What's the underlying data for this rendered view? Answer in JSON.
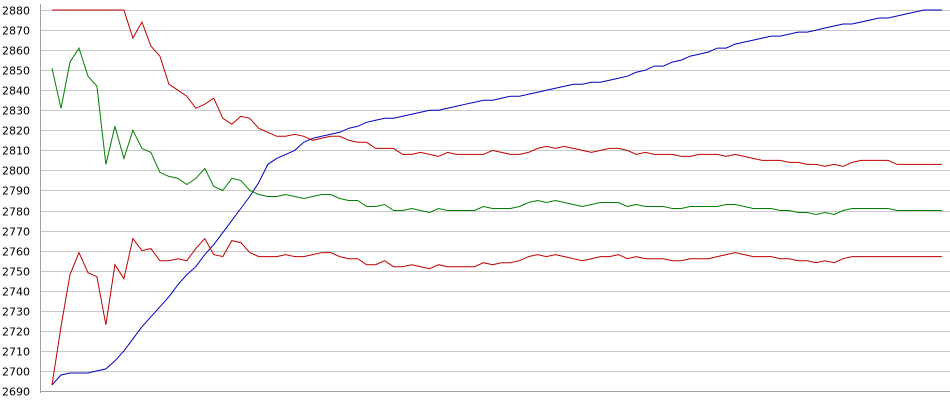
{
  "chart_data": {
    "type": "line",
    "title": "",
    "xlabel": "",
    "ylabel": "",
    "ylim": [
      2690,
      2880
    ],
    "y_ticks": [
      2690,
      2700,
      2710,
      2720,
      2730,
      2740,
      2750,
      2760,
      2770,
      2780,
      2790,
      2800,
      2810,
      2820,
      2830,
      2840,
      2850,
      2860,
      2870,
      2880
    ],
    "grid": true,
    "legend": "none",
    "x": [
      0,
      1,
      2,
      3,
      4,
      5,
      6,
      7,
      8,
      9,
      10,
      11,
      12,
      13,
      14,
      15,
      16,
      17,
      18,
      19,
      20,
      21,
      22,
      23,
      24,
      25,
      26,
      27,
      28,
      29,
      30,
      31,
      32,
      33,
      34,
      35,
      36,
      37,
      38,
      39,
      40,
      41,
      42,
      43,
      44,
      45,
      46,
      47,
      48,
      49,
      50,
      51,
      52,
      53,
      54,
      55,
      56,
      57,
      58,
      59,
      60,
      61,
      62,
      63,
      64,
      65,
      66,
      67,
      68,
      69,
      70,
      71,
      72,
      73,
      74,
      75,
      76,
      77,
      78,
      79,
      80,
      81,
      82,
      83,
      84,
      85,
      86,
      87,
      88,
      89,
      90,
      91,
      92,
      93,
      94,
      95,
      96,
      97,
      98,
      99
    ],
    "series": [
      {
        "color": "#0000c0",
        "values": [
          2693,
          2698,
          2699,
          2699,
          2699,
          2700,
          2701,
          2705,
          2710,
          2716,
          2722,
          2727,
          2732,
          2737,
          2743,
          2748,
          2752,
          2758,
          2763,
          2769,
          2775,
          2781,
          2787,
          2794,
          2803,
          2806,
          2808,
          2810,
          2814,
          2816,
          2817,
          2818,
          2819,
          2821,
          2822,
          2824,
          2825,
          2826,
          2826,
          2827,
          2828,
          2829,
          2830,
          2830,
          2831,
          2832,
          2833,
          2834,
          2835,
          2835,
          2836,
          2837,
          2837,
          2838,
          2839,
          2840,
          2841,
          2842,
          2843,
          2843,
          2844,
          2844,
          2845,
          2846,
          2847,
          2849,
          2850,
          2852,
          2852,
          2854,
          2855,
          2857,
          2858,
          2859,
          2861,
          2861,
          2863,
          2864,
          2865,
          2866,
          2867,
          2867,
          2868,
          2869,
          2869,
          2870,
          2871,
          2872,
          2873,
          2873,
          2874,
          2875,
          2876,
          2876,
          2877,
          2878,
          2879,
          2880,
          2880,
          2880
        ]
      },
      {
        "color": "#c00000",
        "values": [
          2880,
          2880,
          2880,
          2880,
          2880,
          2880,
          2880,
          2880,
          2880,
          2866,
          2874,
          2862,
          2857,
          2843,
          2840,
          2837,
          2831,
          2833,
          2836,
          2826,
          2823,
          2827,
          2826,
          2821,
          2819,
          2817,
          2817,
          2818,
          2817,
          2815,
          2816,
          2817,
          2817,
          2815,
          2814,
          2814,
          2811,
          2811,
          2811,
          2808,
          2808,
          2809,
          2808,
          2807,
          2809,
          2808,
          2808,
          2808,
          2808,
          2810,
          2809,
          2808,
          2808,
          2809,
          2811,
          2812,
          2811,
          2812,
          2811,
          2810,
          2809,
          2810,
          2811,
          2811,
          2810,
          2808,
          2809,
          2808,
          2808,
          2808,
          2807,
          2807,
          2808,
          2808,
          2808,
          2807,
          2808,
          2807,
          2806,
          2805,
          2805,
          2805,
          2804,
          2804,
          2803,
          2803,
          2802,
          2803,
          2802,
          2804,
          2805,
          2805,
          2805,
          2805,
          2803,
          2803,
          2803,
          2803,
          2803,
          2803
        ]
      },
      {
        "color": "#008000",
        "values": [
          2851,
          2831,
          2854,
          2861,
          2847,
          2842,
          2803,
          2822,
          2806,
          2820,
          2811,
          2809,
          2799,
          2797,
          2796,
          2793,
          2796,
          2801,
          2792,
          2790,
          2796,
          2795,
          2790,
          2788,
          2787,
          2787,
          2788,
          2787,
          2786,
          2787,
          2788,
          2788,
          2786,
          2785,
          2785,
          2782,
          2782,
          2783,
          2780,
          2780,
          2781,
          2780,
          2779,
          2781,
          2780,
          2780,
          2780,
          2780,
          2782,
          2781,
          2781,
          2781,
          2782,
          2784,
          2785,
          2784,
          2785,
          2784,
          2783,
          2782,
          2783,
          2784,
          2784,
          2784,
          2782,
          2783,
          2782,
          2782,
          2782,
          2781,
          2781,
          2782,
          2782,
          2782,
          2782,
          2783,
          2783,
          2782,
          2781,
          2781,
          2781,
          2780,
          2780,
          2779,
          2779,
          2778,
          2779,
          2778,
          2780,
          2781,
          2781,
          2781,
          2781,
          2781,
          2780,
          2780,
          2780,
          2780,
          2780,
          2780
        ]
      },
      {
        "color": "#c00000",
        "values": [
          2693,
          2722,
          2748,
          2759,
          2749,
          2747,
          2723,
          2753,
          2746,
          2766,
          2760,
          2761,
          2755,
          2755,
          2756,
          2755,
          2761,
          2766,
          2758,
          2757,
          2765,
          2764,
          2759,
          2757,
          2757,
          2757,
          2758,
          2757,
          2757,
          2758,
          2759,
          2759,
          2757,
          2756,
          2756,
          2753,
          2753,
          2755,
          2752,
          2752,
          2753,
          2752,
          2751,
          2753,
          2752,
          2752,
          2752,
          2752,
          2754,
          2753,
          2754,
          2754,
          2755,
          2757,
          2758,
          2757,
          2758,
          2757,
          2756,
          2755,
          2756,
          2757,
          2757,
          2758,
          2756,
          2757,
          2756,
          2756,
          2756,
          2755,
          2755,
          2756,
          2756,
          2756,
          2757,
          2758,
          2759,
          2758,
          2757,
          2757,
          2757,
          2756,
          2756,
          2755,
          2755,
          2754,
          2755,
          2754,
          2756,
          2757,
          2757,
          2757,
          2757,
          2757,
          2757,
          2757,
          2757,
          2757,
          2757,
          2757
        ]
      }
    ]
  }
}
